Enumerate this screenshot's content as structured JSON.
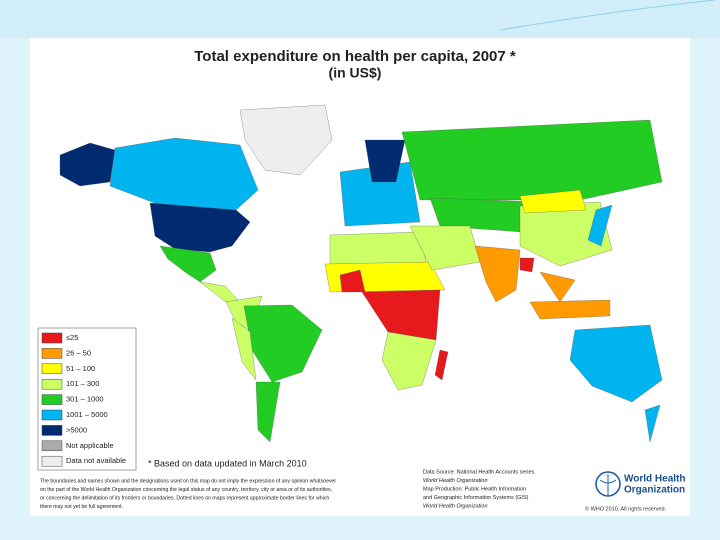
{
  "title": "Total expenditure on health per capita, 2007 *",
  "subtitle": "(in US$)",
  "legend": {
    "items": [
      {
        "label": "≤25",
        "color": "#e8191c"
      },
      {
        "label": "26 – 50",
        "color": "#ff9a00"
      },
      {
        "label": "51 – 100",
        "color": "#ffff00"
      },
      {
        "label": "101 – 300",
        "color": "#ccff66"
      },
      {
        "label": "301 – 1000",
        "color": "#22cc22"
      },
      {
        "label": "1001 – 5000",
        "color": "#00b4f0"
      },
      {
        "label": ">5000",
        "color": "#002b70"
      },
      {
        "label": "Not applicable",
        "color": "#aaaaaa"
      },
      {
        "label": "Data not available",
        "color": "#eeeeee"
      }
    ]
  },
  "footnote": "* Based on data updated in March 2010",
  "disclaimer": [
    "The boundaries and names shown and the designations used on this map do not imply the expression of any opinion whatsoever",
    "on the part of the World Health Organization concerning the legal status of any country, territory, city or area or of its authorities,",
    "or concerning the delimitation of its frontiers or boundaries. Dotted lines on maps represent approximate border lines for which",
    "there may not yet be full agreement."
  ],
  "source": [
    "Data Source: National Health Accounts series.",
    "World Health Organization",
    "Map Production: Public Health Information",
    "and Geographic Information Systems (GIS)",
    "World Health Organization"
  ],
  "logo": [
    "World Health",
    "Organization"
  ],
  "copyright": "© WHO 2010. All rights reserved."
}
